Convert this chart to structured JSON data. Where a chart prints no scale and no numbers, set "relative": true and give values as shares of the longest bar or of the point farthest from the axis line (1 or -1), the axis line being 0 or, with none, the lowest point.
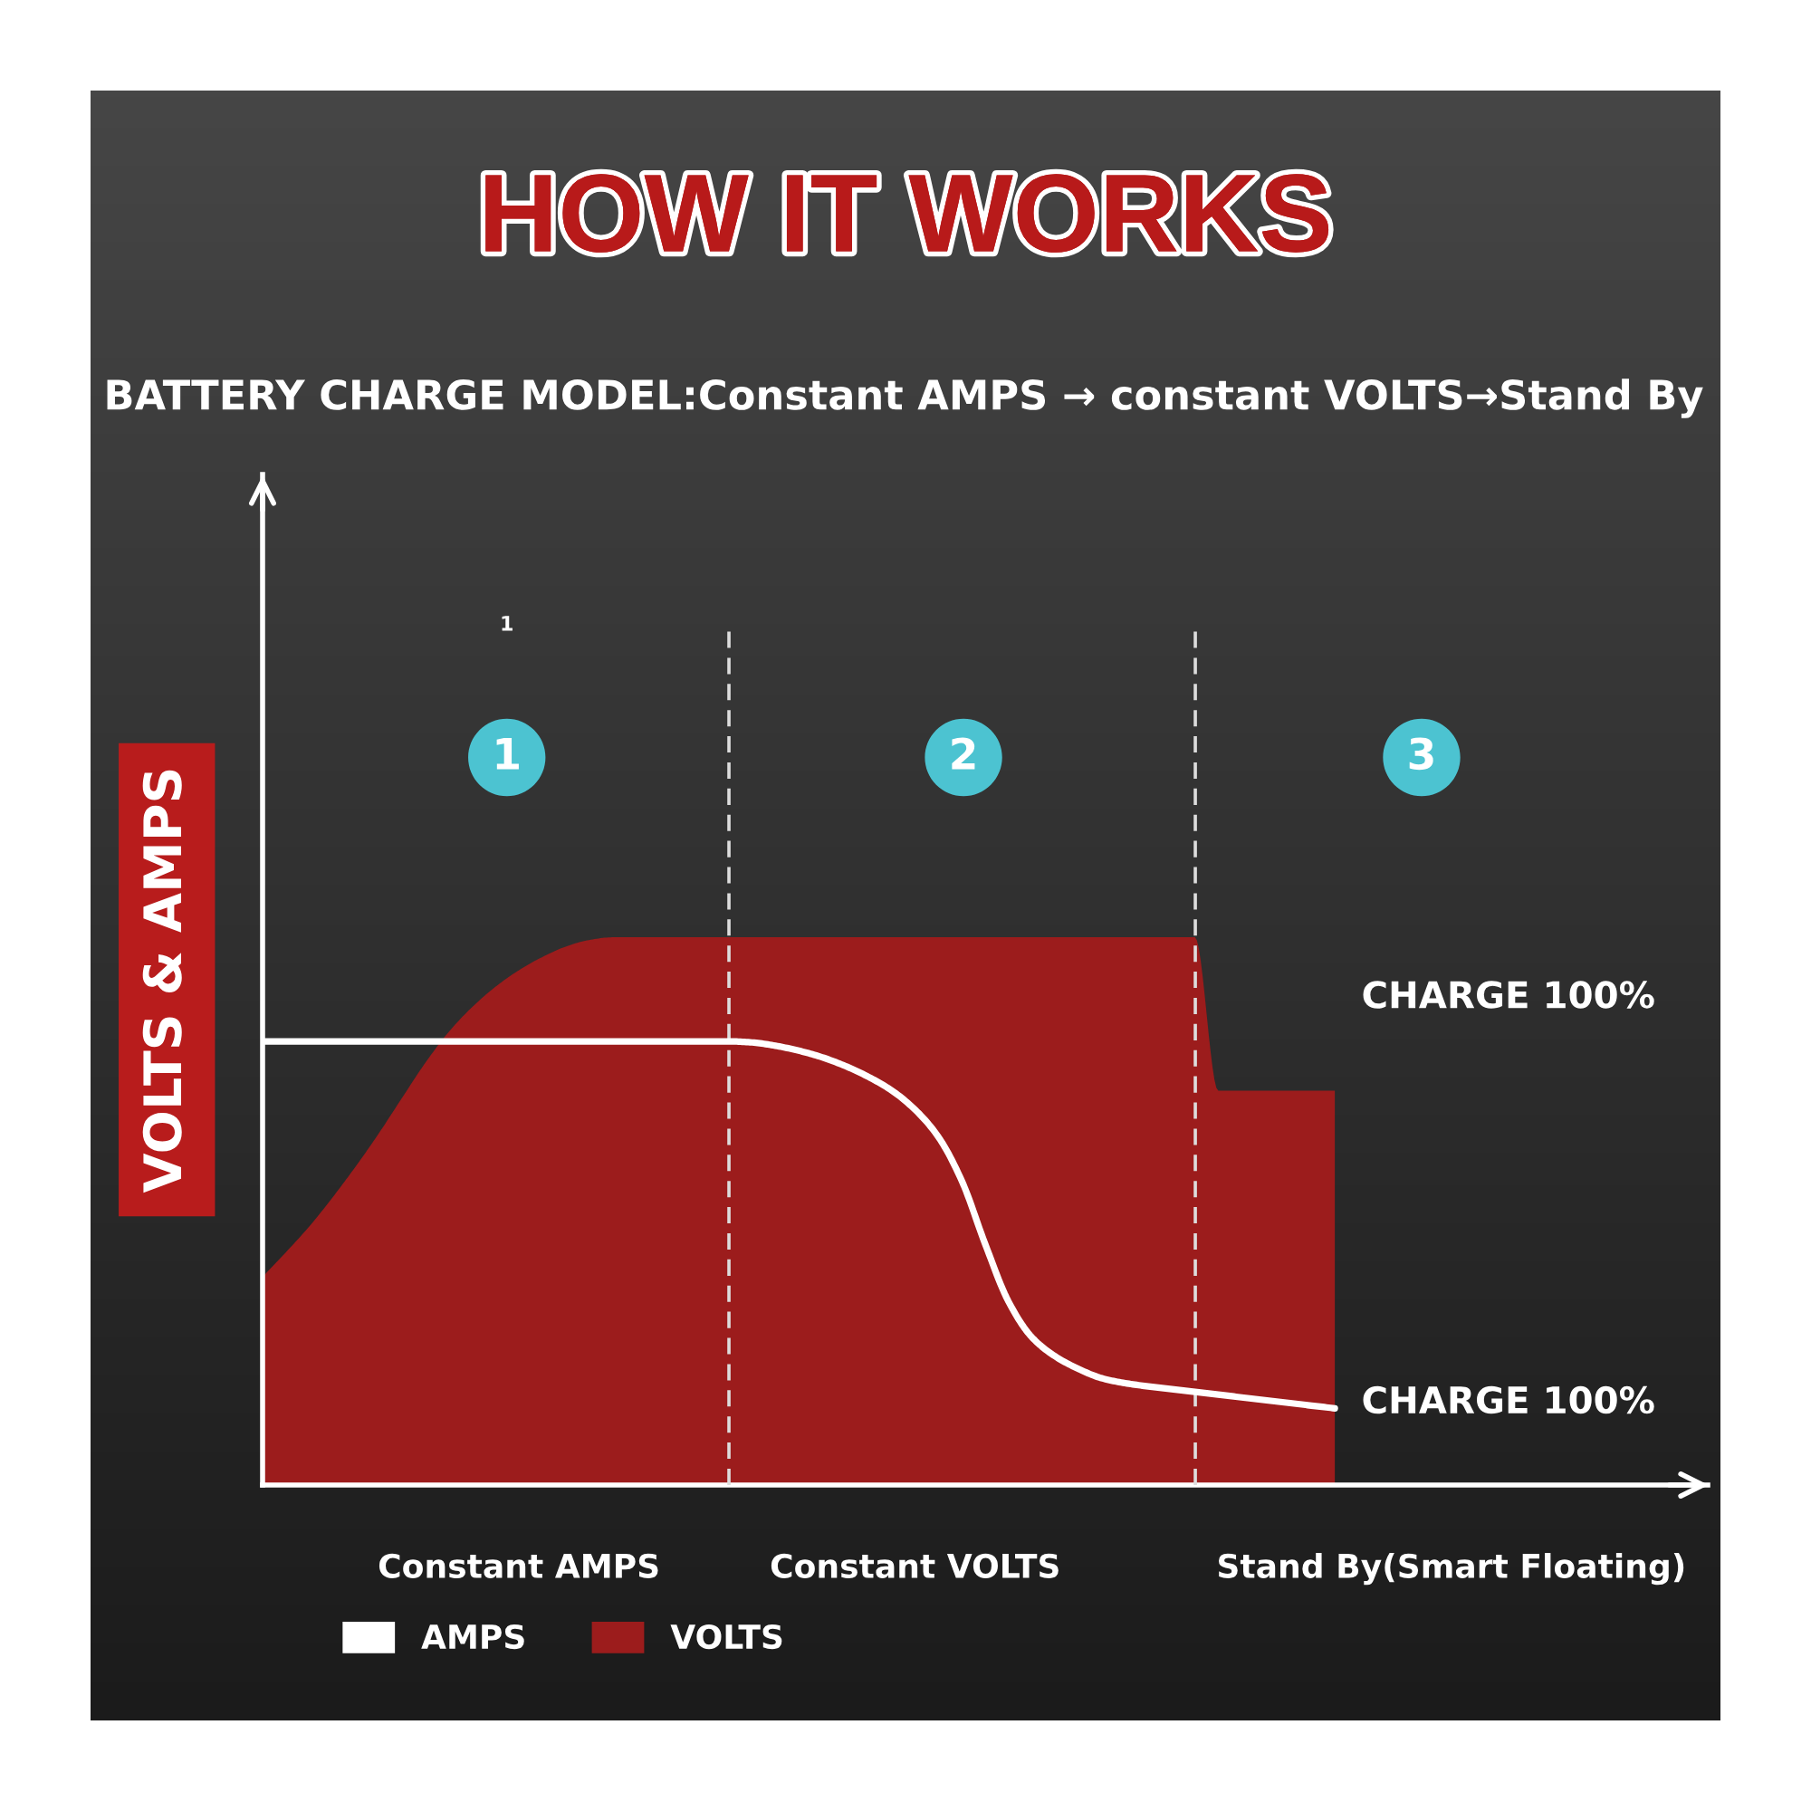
{
  "chart_data": {
    "type": "area",
    "title": "HOW IT WORKS",
    "subtitle": "BATTERY CHARGE MODEL:Constant AMPS → constant VOLTS→Stand By",
    "ylabel": "VOLTS & AMPS",
    "relative": true,
    "tick_labels": "x",
    "categories": [
      null,
      null,
      null,
      null,
      null,
      null,
      null,
      null,
      null,
      null,
      null,
      "Constant AMPS",
      null,
      null,
      null,
      null,
      null,
      null,
      null,
      null,
      null,
      null,
      null,
      null,
      null,
      null,
      null,
      null,
      "Constant VOLTS",
      null,
      null,
      null,
      null,
      null,
      null,
      null,
      null,
      null,
      null,
      null,
      null,
      null,
      null,
      null,
      null,
      null,
      null,
      null,
      null,
      null,
      null,
      "Stand By(Smart Floating)",
      null,
      null,
      null,
      null,
      null,
      null,
      null,
      null,
      null,
      null
    ],
    "series": [
      {
        "name": "AMPS",
        "type": "line",
        "color": "#ffffff",
        "values": [
          0.81,
          0.81,
          0.81,
          0.81,
          0.81,
          0.81,
          0.81,
          0.81,
          0.81,
          0.81,
          0.81,
          0.81,
          0.81,
          0.81,
          0.81,
          0.81,
          0.81,
          0.81,
          0.81,
          0.81,
          0.81,
          0.808,
          0.802,
          0.793,
          0.781,
          0.765,
          0.745,
          0.72,
          0.685,
          0.635,
          0.555,
          0.44,
          0.335,
          0.27,
          0.235,
          0.212,
          0.195,
          0.186,
          0.18,
          0.175,
          0.17,
          0.165,
          0.16,
          0.155,
          0.15,
          0.145,
          0.14,
          null,
          null,
          null,
          null,
          null,
          null,
          null,
          null,
          null,
          null,
          null,
          null,
          null,
          null,
          null
        ]
      },
      {
        "name": "VOLTS",
        "color": "#9c1c1c",
        "values": [
          0.38,
          0.425,
          0.472,
          0.525,
          0.582,
          0.643,
          0.708,
          0.772,
          0.828,
          0.873,
          0.91,
          0.94,
          0.964,
          0.983,
          0.995,
          1,
          1,
          1,
          1,
          1,
          1,
          1,
          1,
          1,
          1,
          1,
          1,
          1,
          1,
          1,
          1,
          1,
          1,
          1,
          1,
          1,
          1,
          1,
          1,
          1,
          1,
          0.72,
          0.72,
          0.72,
          0.72,
          0.72,
          0.72,
          null,
          null,
          null,
          null,
          null,
          null,
          null,
          null,
          null,
          null,
          null,
          null,
          null,
          null,
          null
        ]
      }
    ],
    "annotations": [
      "1",
      "2",
      "3",
      "1",
      "CHARGE 100%",
      "CHARGE 100%"
    ],
    "legend": "bottom"
  }
}
